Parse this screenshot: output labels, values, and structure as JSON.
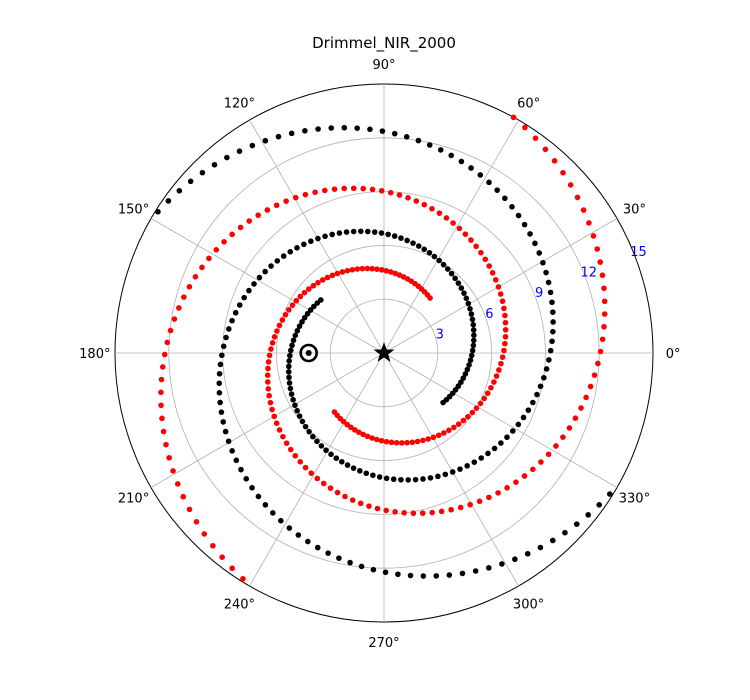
{
  "chart_data": {
    "type": "scatter",
    "projection": "polar",
    "title": "Drimmel_NIR_2000",
    "rlim": [
      0,
      15
    ],
    "radial_ticks": [
      3,
      6,
      9,
      12,
      15
    ],
    "radial_tick_labels": [
      "3",
      "6",
      "9",
      "12",
      "15"
    ],
    "radial_tick_color": "#0000ff",
    "angle_ticks_deg": [
      0,
      30,
      60,
      90,
      120,
      150,
      180,
      210,
      240,
      270,
      300,
      330
    ],
    "angle_tick_labels": [
      "0°",
      "30°",
      "60°",
      "90°",
      "120°",
      "150°",
      "180°",
      "210°",
      "240°",
      "270°",
      "300°",
      "330°"
    ],
    "grid": true,
    "center_marker": {
      "symbol": "star",
      "r": 0,
      "theta_deg": 0,
      "color": "#000000"
    },
    "sun_marker": {
      "symbol": "circle-dot",
      "r": 4.2,
      "theta_deg": 180,
      "color": "#000000"
    },
    "series": [
      {
        "color": "#000000",
        "spiral": {
          "r0": 4.6,
          "theta0_deg": 140,
          "theta1_deg": 515,
          "step_deg": 3.2,
          "r_at_theta1": 15.2
        },
        "points": [
          [
            4.6,
            140
          ],
          [
            6.25,
            270
          ],
          [
            7.6,
            335
          ],
          [
            8.3,
            365
          ],
          [
            9.3,
            400
          ],
          [
            10.5,
            450
          ],
          [
            12.3,
            520
          ],
          [
            13.0,
            563
          ],
          [
            15.0,
            620
          ],
          [
            15.2,
            658
          ]
        ]
      },
      {
        "color": "#000000",
        "spiral": {
          "r0": 4.3,
          "theta0_deg": 320,
          "theta1_deg": 695,
          "step_deg": 3.2,
          "r_at_theta1": 15.2
        }
      },
      {
        "color": "#ff0000",
        "spiral": {
          "r0": 4.0,
          "theta0_deg": 50,
          "theta1_deg": 425,
          "step_deg": 3.2,
          "r_at_theta1": 15.2
        }
      },
      {
        "color": "#ff0000",
        "spiral": {
          "r0": 4.3,
          "theta0_deg": 230,
          "theta1_deg": 605,
          "step_deg": 3.2,
          "r_at_theta1": 15.2
        }
      }
    ]
  }
}
